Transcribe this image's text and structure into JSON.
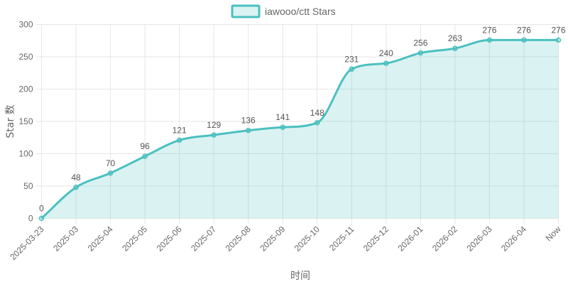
{
  "chart_data": {
    "type": "area",
    "title": "",
    "xlabel": "时间",
    "ylabel": "Star 数",
    "categories": [
      "2025-03-23",
      "2025-03",
      "2025-04",
      "2025-05",
      "2025-06",
      "2025-07",
      "2025-08",
      "2025-09",
      "2025-10",
      "2025-11",
      "2025-12",
      "2026-01",
      "2026-02",
      "2026-03",
      "2026-04",
      "Now"
    ],
    "series": [
      {
        "name": "iawooo/ctt Stars",
        "values": [
          0,
          48,
          70,
          96,
          121,
          129,
          136,
          141,
          148,
          231,
          240,
          256,
          263,
          276,
          276,
          276
        ],
        "color": "#4bc0c0",
        "fill": "rgba(75,192,192,0.2)"
      }
    ],
    "ylim": [
      0,
      300
    ],
    "yticks": [
      0,
      50,
      100,
      150,
      200,
      250,
      300
    ],
    "grid": true,
    "legend_position": "top",
    "data_labels": true
  }
}
